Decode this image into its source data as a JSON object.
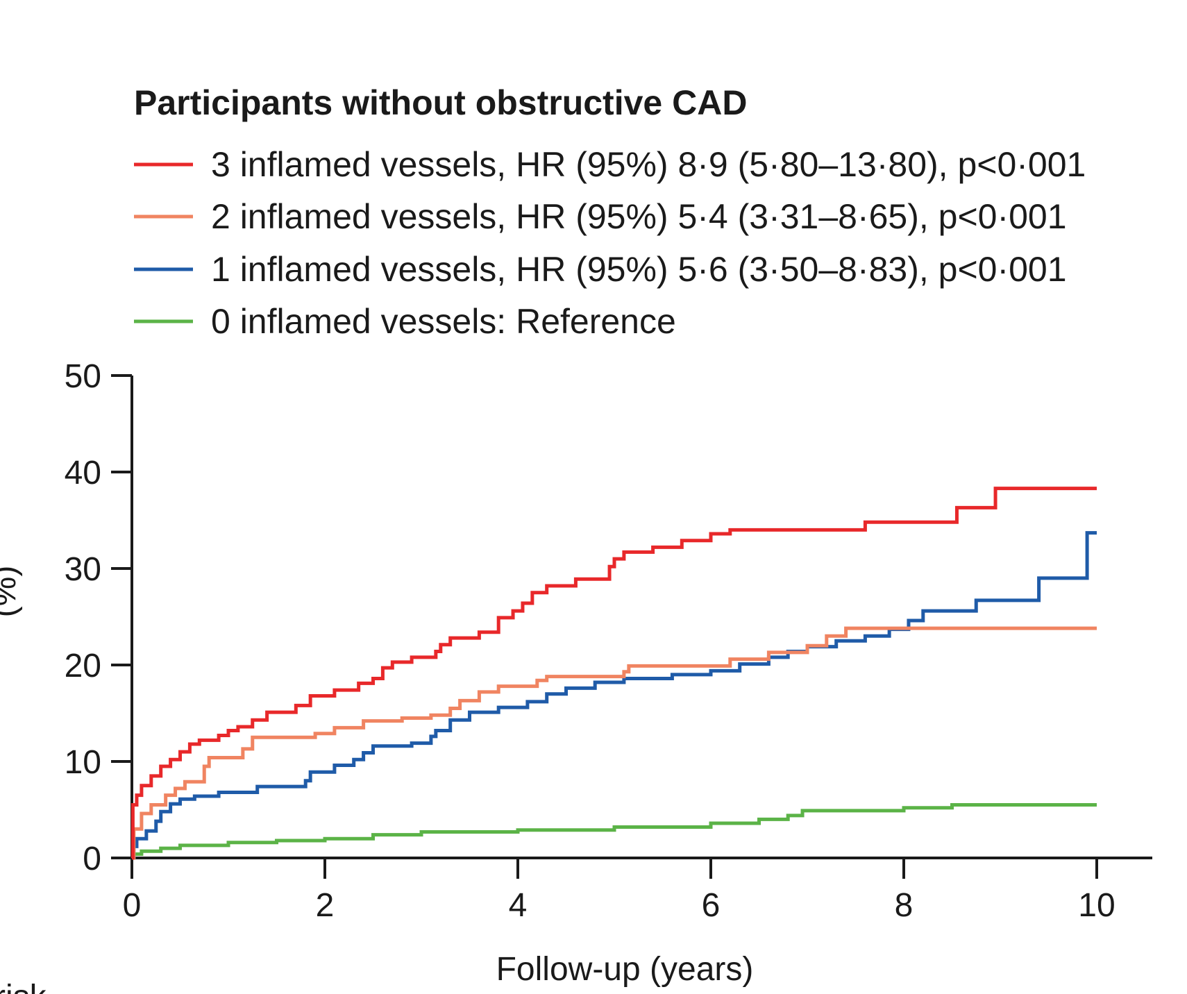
{
  "chart_data": {
    "type": "line",
    "step": true,
    "title": "Participants without obstructive CAD",
    "xlabel": "Follow-up (years)",
    "ylabel": "Cardiac mortality (%)",
    "ylabel_visible": "(%)",
    "xlim": [
      0,
      10
    ],
    "ylim": [
      0,
      50
    ],
    "xticks": [
      "0",
      "2",
      "4",
      "6",
      "8",
      "10"
    ],
    "yticks": [
      "0",
      "10",
      "20",
      "30",
      "40",
      "50"
    ],
    "corner_fragment": "risk",
    "series": [
      {
        "name": "3 inflamed vessels",
        "legend": "3 inflamed vessels, HR (95%) 8·9 (5·80–13·80), p<0·001",
        "color": "#e8282a",
        "points": [
          [
            0,
            0
          ],
          [
            0.01,
            5.5
          ],
          [
            0.05,
            6.5
          ],
          [
            0.1,
            7.5
          ],
          [
            0.2,
            8.5
          ],
          [
            0.3,
            9.5
          ],
          [
            0.4,
            10.2
          ],
          [
            0.5,
            11
          ],
          [
            0.6,
            11.8
          ],
          [
            0.7,
            12.2
          ],
          [
            0.9,
            12.7
          ],
          [
            1.0,
            13.2
          ],
          [
            1.1,
            13.6
          ],
          [
            1.25,
            14.3
          ],
          [
            1.4,
            15.1
          ],
          [
            1.7,
            15.8
          ],
          [
            1.85,
            16.8
          ],
          [
            2.1,
            17.4
          ],
          [
            2.35,
            18.1
          ],
          [
            2.5,
            18.6
          ],
          [
            2.6,
            19.7
          ],
          [
            2.7,
            20.3
          ],
          [
            2.9,
            20.8
          ],
          [
            3.15,
            21.4
          ],
          [
            3.2,
            22.1
          ],
          [
            3.3,
            22.8
          ],
          [
            3.6,
            23.4
          ],
          [
            3.8,
            24.9
          ],
          [
            3.95,
            25.6
          ],
          [
            4.05,
            26.4
          ],
          [
            4.15,
            27.5
          ],
          [
            4.3,
            28.2
          ],
          [
            4.6,
            28.9
          ],
          [
            4.95,
            30.2
          ],
          [
            5.0,
            31.0
          ],
          [
            5.1,
            31.7
          ],
          [
            5.4,
            32.2
          ],
          [
            5.7,
            32.9
          ],
          [
            6.0,
            33.6
          ],
          [
            6.2,
            34.0
          ],
          [
            7.6,
            34.8
          ],
          [
            8.55,
            36.3
          ],
          [
            8.95,
            38.3
          ],
          [
            10.0,
            38.3
          ]
        ]
      },
      {
        "name": "2 inflamed vessels",
        "legend": "2 inflamed vessels, HR (95%) 5·4 (3·31–8·65), p<0·001",
        "color": "#f08461",
        "points": [
          [
            0,
            0
          ],
          [
            0.02,
            3.0
          ],
          [
            0.1,
            4.6
          ],
          [
            0.2,
            5.5
          ],
          [
            0.35,
            6.5
          ],
          [
            0.45,
            7.2
          ],
          [
            0.55,
            7.9
          ],
          [
            0.75,
            9.5
          ],
          [
            0.8,
            10.4
          ],
          [
            1.15,
            11.3
          ],
          [
            1.25,
            12.5
          ],
          [
            1.9,
            12.9
          ],
          [
            2.1,
            13.5
          ],
          [
            2.4,
            14.2
          ],
          [
            2.8,
            14.5
          ],
          [
            3.1,
            14.8
          ],
          [
            3.3,
            15.5
          ],
          [
            3.4,
            16.3
          ],
          [
            3.6,
            17.2
          ],
          [
            3.8,
            17.8
          ],
          [
            4.2,
            18.4
          ],
          [
            4.3,
            18.8
          ],
          [
            5.1,
            19.3
          ],
          [
            5.15,
            19.9
          ],
          [
            6.2,
            20.6
          ],
          [
            6.6,
            21.3
          ],
          [
            7.0,
            22.0
          ],
          [
            7.2,
            23.0
          ],
          [
            7.4,
            23.8
          ],
          [
            10.0,
            23.8
          ]
        ]
      },
      {
        "name": "1 inflamed vessels",
        "legend": "1 inflamed vessels, HR (95%) 5·6 (3·50–8·83), p<0·001",
        "color": "#1f5ba8",
        "points": [
          [
            0,
            0
          ],
          [
            0.02,
            1.2
          ],
          [
            0.05,
            2.0
          ],
          [
            0.15,
            2.8
          ],
          [
            0.25,
            3.8
          ],
          [
            0.3,
            4.8
          ],
          [
            0.4,
            5.6
          ],
          [
            0.5,
            6.1
          ],
          [
            0.65,
            6.4
          ],
          [
            0.9,
            6.8
          ],
          [
            1.3,
            7.4
          ],
          [
            1.8,
            8.0
          ],
          [
            1.85,
            8.9
          ],
          [
            2.1,
            9.6
          ],
          [
            2.3,
            10.2
          ],
          [
            2.4,
            10.9
          ],
          [
            2.5,
            11.6
          ],
          [
            2.9,
            11.9
          ],
          [
            3.1,
            12.6
          ],
          [
            3.15,
            13.2
          ],
          [
            3.3,
            14.3
          ],
          [
            3.5,
            15.1
          ],
          [
            3.8,
            15.6
          ],
          [
            4.1,
            16.2
          ],
          [
            4.3,
            17.0
          ],
          [
            4.5,
            17.6
          ],
          [
            4.8,
            18.2
          ],
          [
            5.1,
            18.6
          ],
          [
            5.6,
            19.0
          ],
          [
            6.0,
            19.4
          ],
          [
            6.3,
            20.1
          ],
          [
            6.6,
            20.8
          ],
          [
            6.8,
            21.4
          ],
          [
            7.0,
            21.9
          ],
          [
            7.3,
            22.5
          ],
          [
            7.6,
            23.0
          ],
          [
            7.85,
            23.7
          ],
          [
            8.05,
            24.6
          ],
          [
            8.2,
            25.6
          ],
          [
            8.75,
            26.7
          ],
          [
            9.4,
            29.0
          ],
          [
            9.9,
            33.7
          ],
          [
            10.0,
            33.7
          ]
        ]
      },
      {
        "name": "0 inflamed vessels",
        "legend": "0 inflamed vessels: Reference",
        "color": "#5bb347",
        "points": [
          [
            0,
            0
          ],
          [
            0.02,
            0.4
          ],
          [
            0.1,
            0.7
          ],
          [
            0.3,
            1.0
          ],
          [
            0.5,
            1.3
          ],
          [
            1.0,
            1.6
          ],
          [
            1.5,
            1.8
          ],
          [
            2.0,
            2.0
          ],
          [
            2.5,
            2.4
          ],
          [
            3.0,
            2.7
          ],
          [
            4.0,
            2.9
          ],
          [
            5.0,
            3.2
          ],
          [
            6.0,
            3.6
          ],
          [
            6.5,
            4.0
          ],
          [
            6.8,
            4.4
          ],
          [
            6.95,
            4.9
          ],
          [
            8.0,
            5.2
          ],
          [
            8.5,
            5.5
          ],
          [
            10.0,
            5.5
          ]
        ]
      }
    ]
  }
}
